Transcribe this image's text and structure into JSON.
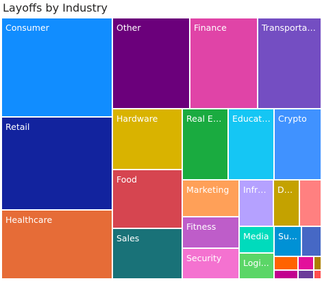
{
  "chart_data": {
    "type": "treemap",
    "title": "Layoffs by Industry",
    "items": [
      {
        "label": "Consumer",
        "color": "#118DFF"
      },
      {
        "label": "Retail",
        "color": "#12239E"
      },
      {
        "label": "Healthcare",
        "color": "#E66C37"
      },
      {
        "label": "Other",
        "color": "#6B007B"
      },
      {
        "label": "Finance",
        "color": "#E044A7"
      },
      {
        "label": "Transportat...",
        "color": "#744EC2"
      },
      {
        "label": "Hardware",
        "color": "#D9B300"
      },
      {
        "label": "Food",
        "color": "#D64550"
      },
      {
        "label": "Sales",
        "color": "#197278"
      },
      {
        "label": "Real Est...",
        "color": "#1AAB40"
      },
      {
        "label": "Educati...",
        "color": "#15C6F4"
      },
      {
        "label": "Crypto",
        "color": "#4092FF"
      },
      {
        "label": "Marketing",
        "color": "#FFA058"
      },
      {
        "label": "Fitness",
        "color": "#BE5DC9"
      },
      {
        "label": "Security",
        "color": "#F472D0"
      },
      {
        "label": "Infra...",
        "color": "#B5A1FF"
      },
      {
        "label": "Da...",
        "color": "#C4A200"
      },
      {
        "label": "",
        "color": "#FF8080"
      },
      {
        "label": "Media",
        "color": "#00DBBC"
      },
      {
        "label": "Logi...",
        "color": "#5BD667"
      },
      {
        "label": "Su...",
        "color": "#0091D5"
      },
      {
        "label": "",
        "color": "#4668C5"
      },
      {
        "label": "",
        "color": "#FF6300"
      },
      {
        "label": "",
        "color": "#E30F9B"
      },
      {
        "label": "",
        "color": "#AD7F00"
      },
      {
        "label": "",
        "color": "#C2008F"
      },
      {
        "label": "",
        "color": "#6C3D9A"
      },
      {
        "label": "",
        "color": "#FF4F4F"
      }
    ]
  }
}
